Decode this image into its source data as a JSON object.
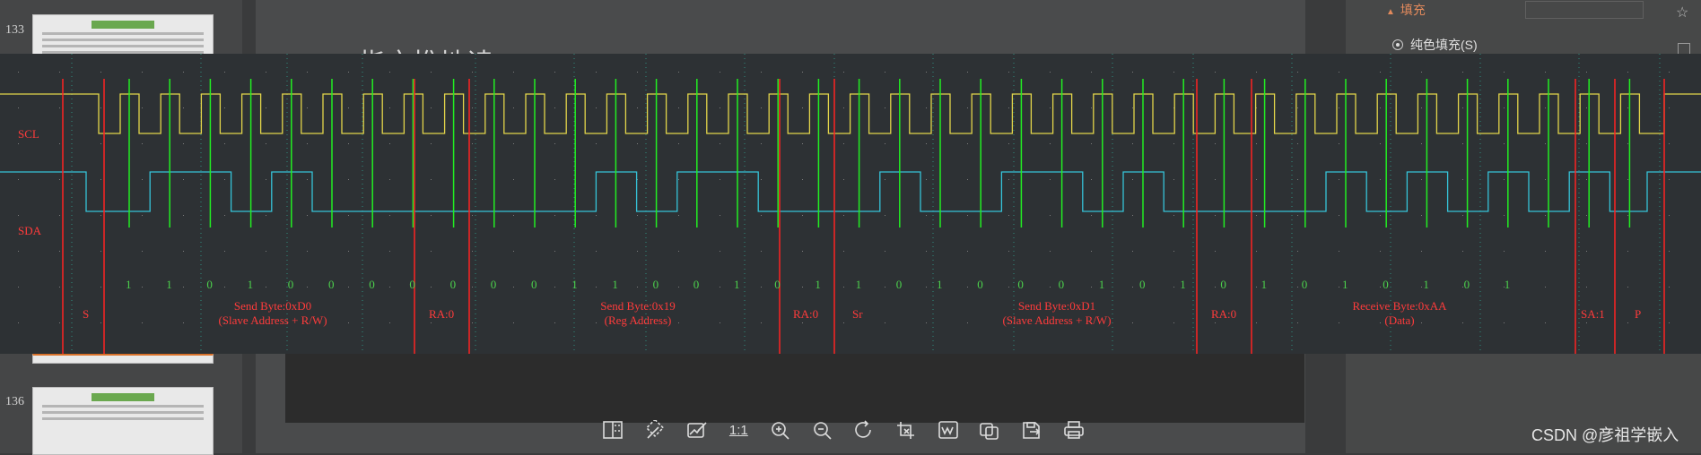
{
  "viewer": {
    "toolbar": [
      {
        "name": "original-size-button",
        "icon": "split-view-icon"
      },
      {
        "name": "magic-button",
        "icon": "magic-wand-icon"
      },
      {
        "name": "edit-image-button",
        "icon": "edit-image-icon"
      },
      {
        "name": "actual-size-button",
        "icon": "one-to-one-icon",
        "label": "1:1"
      },
      {
        "name": "zoom-in-button",
        "icon": "zoom-in-icon"
      },
      {
        "name": "zoom-out-button",
        "icon": "zoom-out-icon"
      },
      {
        "name": "rotate-button",
        "icon": "rotate-icon"
      },
      {
        "name": "crop-button",
        "icon": "crop-icon"
      },
      {
        "name": "image-to-text-button",
        "icon": "ocr-icon"
      },
      {
        "name": "copy-image-button",
        "icon": "copy-image-icon"
      },
      {
        "name": "save-button",
        "icon": "save-icon"
      },
      {
        "name": "print-button",
        "icon": "print-icon"
      }
    ],
    "watermark": "CSDN @彦祖学嵌入"
  },
  "background_app": {
    "slide_numbers": [
      "133",
      "136"
    ],
    "fill_panel_title": "填充",
    "fill_option": "纯色填充(S)",
    "slide_title_fragment": "指亦推地读"
  },
  "scope": {
    "channels": [
      {
        "label": "SCL",
        "color": "#e3d54a"
      },
      {
        "label": "SDA",
        "color": "#35c3d8"
      }
    ],
    "bits": [
      "1",
      "1",
      "0",
      "1",
      "0",
      "0",
      "0",
      "0",
      "0",
      "0",
      "0",
      "1",
      "1",
      "0",
      "0",
      "1",
      "0",
      "1",
      "1",
      "0",
      "1",
      "0",
      "0",
      "0",
      "1",
      "0",
      "1",
      "0",
      "1",
      "0",
      "1",
      "0",
      "1",
      "0",
      "1"
    ],
    "frames": [
      {
        "code": "S"
      },
      {
        "line1": "Send Byte:0xD0",
        "line2": "(Slave Address + R/W)"
      },
      {
        "code": "RA:0"
      },
      {
        "line1": "Send Byte:0x19",
        "line2": "(Reg Address)"
      },
      {
        "code": "RA:0"
      },
      {
        "code": "Sr"
      },
      {
        "line1": "Send Byte:0xD1",
        "line2": "(Slave Address + R/W)"
      },
      {
        "code": "RA:0"
      },
      {
        "line1": "Receive Byte:0xAA",
        "line2": "(Data)"
      },
      {
        "code": "SA:1"
      },
      {
        "code": "P"
      }
    ],
    "colors": {
      "marker": "#ff2222",
      "sample": "#22ee22",
      "text_red": "#ff3b3b",
      "text_green": "#4cd14c",
      "grid": "#2f8f7f"
    }
  }
}
